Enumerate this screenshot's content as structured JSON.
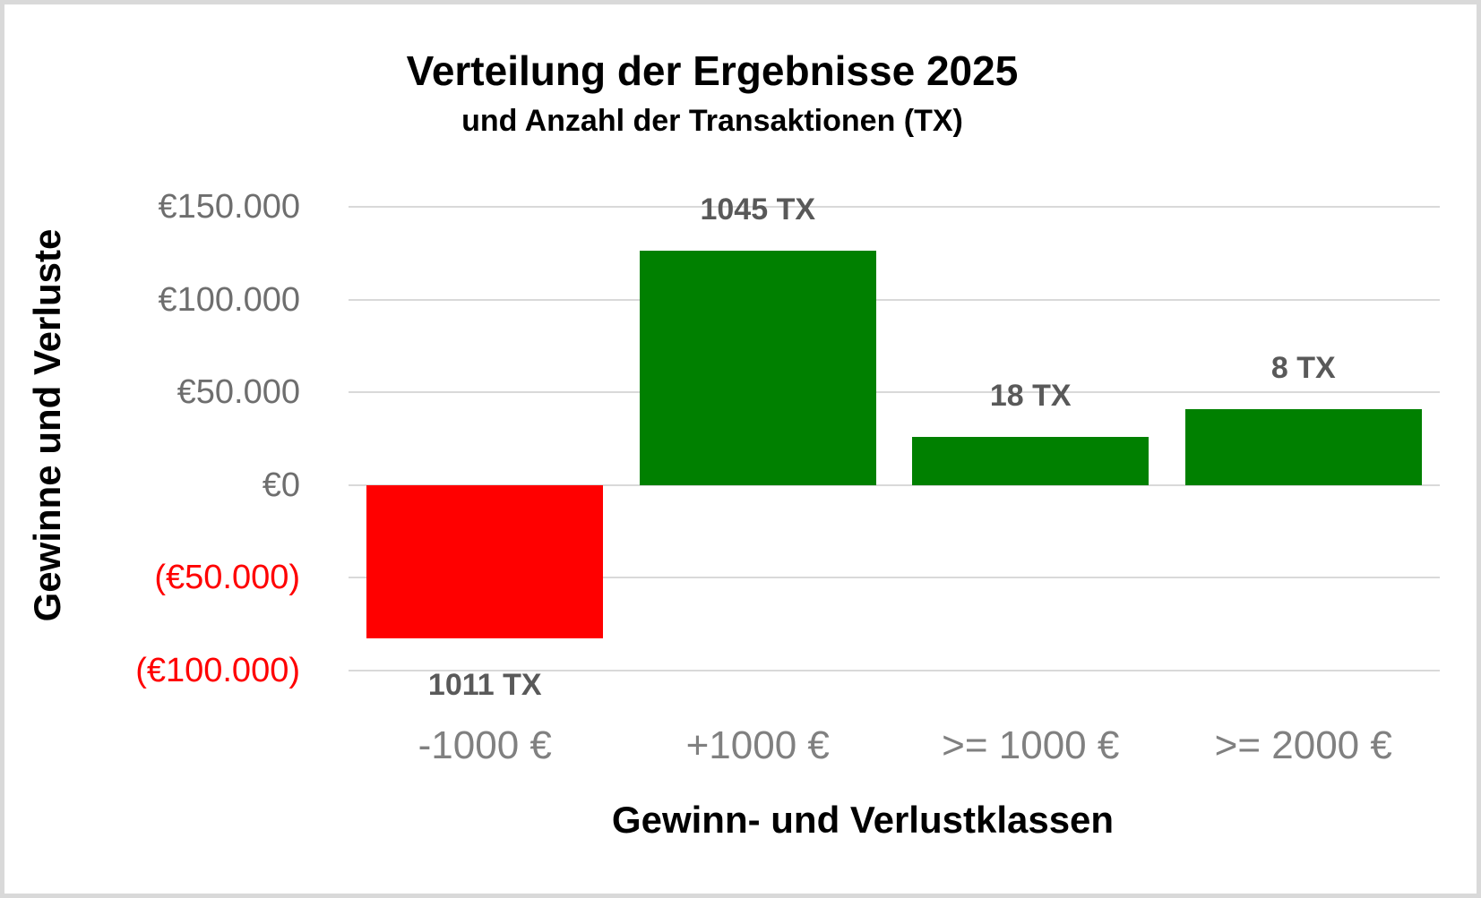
{
  "page": {
    "background_color": "#ffffff",
    "frame_border_color": "#d9d9d9"
  },
  "chart_data": {
    "type": "bar",
    "title": "Verteilung der Ergebnisse 2025",
    "subtitle": "und Anzahl der Transaktionen (TX)",
    "xlabel": "Gewinn- und Verlustklassen",
    "ylabel": "Gewinne und Verluste",
    "categories": [
      "-1000  €",
      "+1000 €",
      ">= 1000 €",
      ">= 2000 €"
    ],
    "values": [
      -82500,
      126500,
      26000,
      41000
    ],
    "bar_labels": [
      "1011 TX",
      "1045 TX",
      "18 TX",
      "8 TX"
    ],
    "tx_counts": [
      1011,
      1045,
      18,
      8
    ],
    "bar_colors": [
      "#ff0000",
      "#008000",
      "#008000",
      "#008000"
    ],
    "ylim": [
      -100000,
      150000
    ],
    "yticks": [
      {
        "label": "€150.000",
        "value": 150000,
        "color": "#6e6e6e"
      },
      {
        "label": "€100.000",
        "value": 100000,
        "color": "#6e6e6e"
      },
      {
        "label": "€50.000",
        "value": 50000,
        "color": "#6e6e6e"
      },
      {
        "label": "€0",
        "value": 0,
        "color": "#6e6e6e"
      },
      {
        "label": "(€50.000)",
        "value": -50000,
        "color": "#ff0000"
      },
      {
        "label": "(€100.000)",
        "value": -100000,
        "color": "#ff0000"
      }
    ],
    "grid": true,
    "legend": false,
    "colors": {
      "gain_bar": "#008000",
      "loss_bar": "#ff0000",
      "gridline": "#d9d9d9",
      "y_tick_text": "#6e6e6e",
      "y_tick_negative_text": "#ff0000",
      "x_tick_text": "#808080",
      "bar_label_text": "#595959",
      "title_text": "#000000"
    }
  }
}
